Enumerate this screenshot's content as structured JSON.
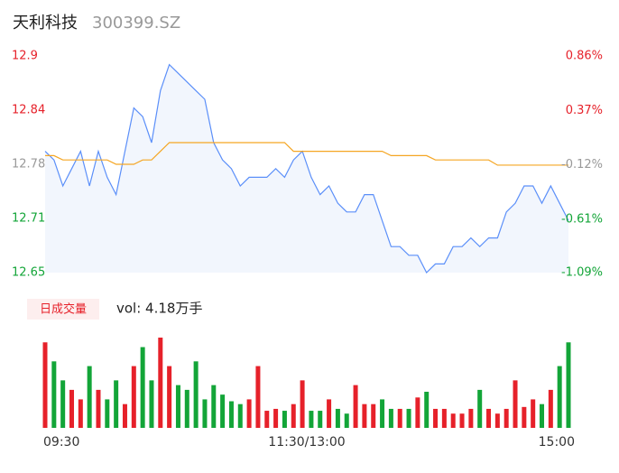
{
  "chart_data": [
    {
      "type": "line",
      "title": "天利科技",
      "subtitle": "300399.SZ",
      "ylim": [
        12.65,
        12.9
      ],
      "yticks": [
        12.65,
        {
          "value": 12.7125,
          "label": "12.71"
        },
        {
          "value": 12.775,
          "label": "12.78"
        },
        {
          "value": 12.8375,
          "label": "12.84"
        },
        12.9
      ],
      "y2lim": [
        -1.09,
        0.86
      ],
      "y2ticks": [
        {
          "value": -1.09,
          "label": "-1.09%"
        },
        {
          "value": -0.61,
          "label": "-0.61%"
        },
        {
          "value": -0.12,
          "label": "-0.12%"
        },
        {
          "value": 0.37,
          "label": "0.37%"
        },
        {
          "value": 0.86,
          "label": "0.86%"
        }
      ],
      "tick_colors": [
        "#13a538",
        "#13a538",
        "#999999",
        "#e6212a",
        "#e6212a"
      ],
      "area_color": "#f2f6fd",
      "series": [
        {
          "color": "#5b8ff9",
          "values": [
            12.79,
            12.78,
            12.75,
            12.77,
            12.79,
            12.75,
            12.79,
            12.76,
            12.74,
            12.79,
            12.84,
            12.83,
            12.8,
            12.86,
            12.89,
            12.88,
            12.87,
            12.86,
            12.85,
            12.8,
            12.78,
            12.77,
            12.75,
            12.76,
            12.76,
            12.76,
            12.77,
            12.76,
            12.78,
            12.79,
            12.76,
            12.74,
            12.75,
            12.73,
            12.72,
            12.72,
            12.74,
            12.74,
            12.71,
            12.68,
            12.68,
            12.67,
            12.67,
            12.65,
            12.66,
            12.66,
            12.68,
            12.68,
            12.69,
            12.68,
            12.69,
            12.69,
            12.72,
            12.73,
            12.75,
            12.75,
            12.73,
            12.75,
            12.73,
            12.71
          ]
        },
        {
          "color": "#f5a623",
          "values": [
            12.785,
            12.785,
            12.78,
            12.78,
            12.78,
            12.78,
            12.78,
            12.78,
            12.775,
            12.775,
            12.775,
            12.78,
            12.78,
            12.79,
            12.8,
            12.8,
            12.8,
            12.8,
            12.8,
            12.8,
            12.8,
            12.8,
            12.8,
            12.8,
            12.8,
            12.8,
            12.8,
            12.8,
            12.79,
            12.79,
            12.79,
            12.79,
            12.79,
            12.79,
            12.79,
            12.79,
            12.79,
            12.79,
            12.79,
            12.785,
            12.785,
            12.785,
            12.785,
            12.785,
            12.78,
            12.78,
            12.78,
            12.78,
            12.78,
            12.78,
            12.78,
            12.774,
            12.774,
            12.774,
            12.774,
            12.774,
            12.774,
            12.774,
            12.774,
            12.774
          ]
        }
      ]
    },
    {
      "type": "bar",
      "legend_label": "日成交量",
      "annotation": "vol: 4.18万手",
      "up_color": "#e6212a",
      "down_color": "#13a538",
      "x_labels": [
        "09:30",
        "11:30/13:00",
        "15:00"
      ],
      "values": [
        900,
        700,
        500,
        400,
        300,
        650,
        400,
        300,
        500,
        250,
        650,
        850,
        500,
        950,
        650,
        450,
        400,
        700,
        300,
        450,
        350,
        280,
        250,
        300,
        650,
        180,
        200,
        180,
        250,
        500,
        180,
        180,
        300,
        200,
        150,
        450,
        250,
        250,
        300,
        200,
        200,
        200,
        320,
        380,
        200,
        200,
        150,
        150,
        200,
        400,
        200,
        150,
        200,
        500,
        220,
        300,
        250,
        400,
        650,
        900
      ]
    }
  ]
}
